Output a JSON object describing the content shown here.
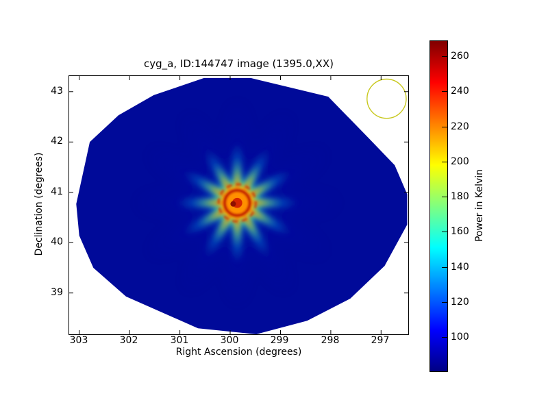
{
  "chart_data": {
    "type": "heatmap",
    "title": "cyg_a, ID:144747 image (1395.0,XX)",
    "xlabel": "Right Ascension (degrees)",
    "ylabel": "Declination (degrees)",
    "x_ticks": [
      303,
      302,
      301,
      300,
      299,
      298,
      297
    ],
    "y_ticks": [
      39,
      40,
      41,
      42,
      43
    ],
    "xlim": [
      303.2,
      296.46
    ],
    "ylim": [
      38.18,
      43.31
    ],
    "grid": false,
    "background_color": "#ffffff",
    "colorbar": {
      "label": "Power in Kelvin",
      "ticks": [
        100,
        120,
        140,
        160,
        180,
        200,
        220,
        240,
        260
      ],
      "vmin": 81,
      "vmax": 269,
      "colormap": "jet",
      "stops": [
        {
          "p": 0.0,
          "c": "#000084"
        },
        {
          "p": 0.125,
          "c": "#0000ff"
        },
        {
          "p": 0.375,
          "c": "#00ffff"
        },
        {
          "p": 0.625,
          "c": "#ffff00"
        },
        {
          "p": 0.875,
          "c": "#ff0000"
        },
        {
          "p": 1.0,
          "c": "#800000"
        }
      ]
    },
    "field_fill": "#000a99",
    "field_polygon": [
      [
        300.52,
        43.27
      ],
      [
        299.59,
        43.27
      ],
      [
        298.05,
        42.9
      ],
      [
        297.23,
        42.06
      ],
      [
        296.73,
        41.54
      ],
      [
        296.48,
        40.96
      ],
      [
        296.48,
        40.36
      ],
      [
        296.93,
        39.54
      ],
      [
        297.61,
        38.89
      ],
      [
        298.47,
        38.45
      ],
      [
        299.48,
        38.18
      ],
      [
        300.64,
        38.3
      ],
      [
        302.07,
        38.93
      ],
      [
        302.72,
        39.5
      ],
      [
        303.0,
        40.14
      ],
      [
        303.06,
        40.77
      ],
      [
        302.79,
        42.0
      ],
      [
        302.22,
        42.53
      ],
      [
        301.52,
        42.93
      ]
    ],
    "source": {
      "name": "cyg_a",
      "ra": 299.86,
      "dec": 40.79,
      "n_spikes": 12,
      "spike_layers": [
        {
          "outer_deg": 2.0,
          "inner_deg": 0.4,
          "color": "#0019b4",
          "blur": 13,
          "opacity": 0.5
        },
        {
          "outer_deg": 1.16,
          "inner_deg": 0.3,
          "color": "#00dcff",
          "blur": 6,
          "opacity": 0.95
        },
        {
          "outer_deg": 0.85,
          "inner_deg": 0.24,
          "color": "#e8ff00",
          "blur": 5,
          "opacity": 0.95
        },
        {
          "outer_deg": 0.62,
          "inner_deg": 0.17,
          "color": "#ff8400",
          "blur": 4,
          "opacity": 1
        },
        {
          "outer_deg": 0.45,
          "inner_deg": 0.12,
          "color": "#ff3000",
          "blur": 3,
          "opacity": 1
        }
      ],
      "core": {
        "base_disc": {
          "r_deg": 0.3,
          "fill": "#ff9100",
          "blur": 4
        },
        "outer_ring": {
          "r_deg": 0.37,
          "stroke": "#d03000",
          "width": 3,
          "dash": "8 6",
          "blur": 1.5,
          "opacity": 0.85
        },
        "inner_ring": {
          "r_deg": 0.25,
          "stroke": "#b81400",
          "width": 3.5,
          "blur": 1.5
        },
        "inner_disc": {
          "r_deg": 0.1,
          "fill": "#d42600"
        },
        "dark_dot": {
          "r_deg": 0.055,
          "fill": "#8c1000",
          "dx_deg": -0.08,
          "dy_deg": 0.02
        }
      }
    },
    "beam": {
      "ra": 296.89,
      "dec": 42.86,
      "radius_deg": 0.39,
      "color": "#c8c81e",
      "stroke_width": 1.4
    }
  }
}
